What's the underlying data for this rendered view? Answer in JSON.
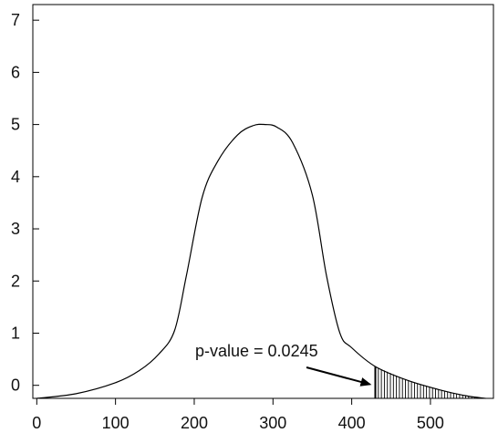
{
  "chart_data": {
    "type": "area",
    "title": "",
    "xlabel": "",
    "ylabel": "",
    "xlim": [
      -5,
      580
    ],
    "ylim": [
      -0.25,
      7.3
    ],
    "x_ticks": [
      "0",
      "100",
      "200",
      "300",
      "400",
      "500"
    ],
    "y_ticks": [
      "0",
      "1",
      "2",
      "3",
      "4",
      "5",
      "6",
      "7"
    ],
    "grid": false,
    "legend": "none",
    "series": [
      {
        "x": [
          0,
          50,
          100,
          130,
          155,
          175,
          190,
          210,
          230,
          255,
          275,
          290,
          305,
          325,
          350,
          368,
          385,
          400,
          430,
          470,
          510,
          545,
          570
        ],
        "y": [
          -0.25,
          -0.16,
          0.05,
          0.28,
          0.6,
          1.05,
          2.1,
          3.6,
          4.3,
          4.8,
          4.98,
          5.0,
          4.95,
          4.65,
          3.65,
          2.1,
          1.0,
          0.72,
          0.36,
          0.1,
          -0.08,
          -0.2,
          -0.25
        ]
      }
    ],
    "shaded_region": {
      "x_start": 430,
      "x_end": 570
    },
    "annotation": {
      "text": "p-value = 0.0245",
      "target_x": 430,
      "target_y": -0.05
    },
    "colors": {
      "line": "#000000",
      "axes": "#000000",
      "text": "#111111"
    }
  }
}
